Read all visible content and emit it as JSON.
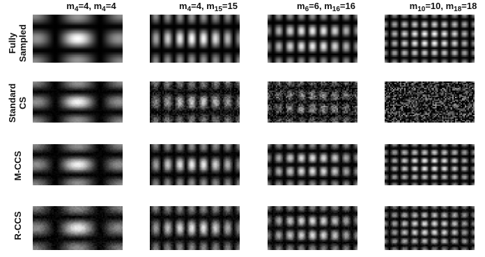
{
  "figure": {
    "columns": [
      {
        "mz": "4",
        "my": "4"
      },
      {
        "mz": "4",
        "my": "15"
      },
      {
        "mz": "6",
        "my": "16"
      },
      {
        "mz": "10",
        "my": "18"
      }
    ],
    "rows": [
      {
        "label_lines": [
          "Fully",
          "Sampled"
        ]
      },
      {
        "label_lines": [
          "Standard",
          "CS"
        ]
      },
      {
        "label_lines": [
          "M-CCS"
        ]
      },
      {
        "label_lines": [
          "R-CCS"
        ]
      }
    ]
  }
}
